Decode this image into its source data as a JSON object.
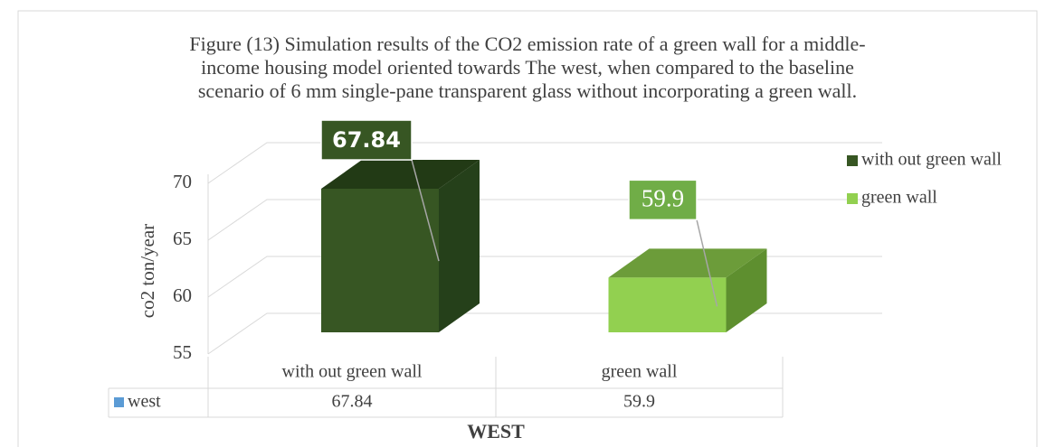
{
  "chart_data": {
    "type": "bar3d",
    "title": "Figure (13) Simulation results of the CO2 emission rate of a green wall for a middle-income housing model oriented towards The west, when compared to the baseline scenario of 6 mm single-pane transparent glass without incorporating a green wall.",
    "y_label": "co2  ton/year",
    "x_label": "WEST",
    "categories": [
      "with out green wall",
      "green wall"
    ],
    "colors": [
      "#375623",
      "#92d050"
    ],
    "series": [
      {
        "name": "west",
        "color": "#5b9bd5",
        "values": [
          67.84,
          59.9
        ]
      }
    ],
    "ylim": [
      55,
      70
    ],
    "yticks": [
      55,
      60,
      65,
      70
    ],
    "grid": true,
    "legend": "right",
    "data_table": true
  }
}
